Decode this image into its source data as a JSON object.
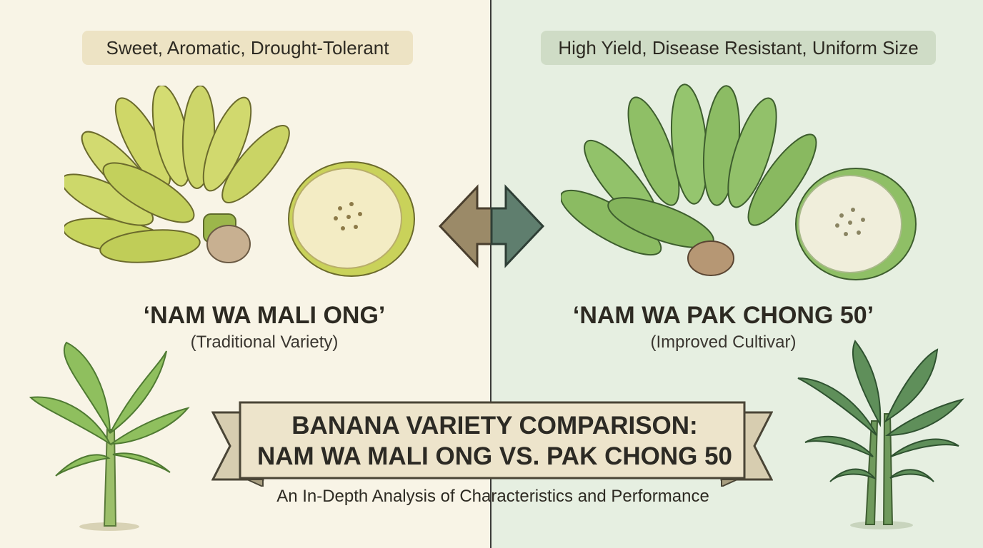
{
  "left": {
    "tagline": "Sweet, Aromatic, Drought-Tolerant",
    "variety_name": "‘NAM WA MALI ONG’",
    "variety_type": "(Traditional Variety)"
  },
  "right": {
    "tagline": "High Yield, Disease Resistant, Uniform Size",
    "variety_name": "‘NAM WA PAK CHONG 50’",
    "variety_type": "(Improved Cultivar)"
  },
  "banner": {
    "title_line1": "BANANA VARIETY COMPARISON:",
    "title_line2": "NAM WA MALI ONG VS. PAK CHONG 50"
  },
  "subtitle": "An In-Depth Analysis of Characteristics and Performance",
  "colors": {
    "left_background": "#f8f4e6",
    "right_background": "#e6efe1",
    "ripe_banana": "#c9d463",
    "green_banana": "#8fc06a",
    "banner_fill": "#ede4cb"
  },
  "icons": [
    "banana-bunch-yellow",
    "banana-slice-yellow",
    "compare-arrows-icon",
    "banana-bunch-green",
    "banana-slice-green",
    "banana-tree-young",
    "banana-tree-dense",
    "ribbon-banner"
  ]
}
